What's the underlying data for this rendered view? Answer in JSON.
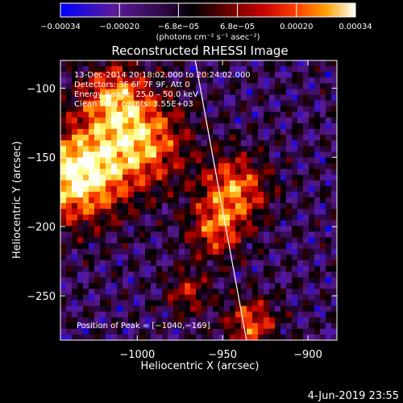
{
  "chart_data": {
    "type": "heatmap",
    "title": "Reconstructed RHESSI Image",
    "xlabel": "Heliocentric X (arcsec)",
    "ylabel": "Heliocentric Y (arcsec)",
    "xlim": [
      -1045,
      -883
    ],
    "ylim": [
      -282,
      -80
    ],
    "x_ticks": [
      -1000,
      -950,
      -900
    ],
    "x_tick_labels": [
      "−1000",
      "−950",
      "−900"
    ],
    "y_ticks": [
      -100,
      -150,
      -200,
      -250
    ],
    "y_tick_labels": [
      "−100",
      "−150",
      "−200",
      "−250"
    ],
    "colormap": [
      "#0000ff",
      "#5a1a9a",
      "#3a0a55",
      "#000000",
      "#5a0000",
      "#c00000",
      "#ff4000",
      "#ffa000",
      "#ffff80",
      "#ffffff"
    ],
    "colorbar": {
      "range": [
        -0.00034,
        0.00034
      ],
      "tick_labels": [
        "−0.00034",
        "−0.00020",
        "−6.8e−05",
        "6.8e−05",
        "0.00020",
        "0.00034"
      ],
      "unit": "(photons cm⁻² s⁻¹ asec⁻²)"
    },
    "annotations": [
      "13-Dec-2014 20:18:02.000 to 20:24:02.000",
      "Detectors: 3F 6F 7F 9F, Att 0",
      "Energy Range: 25.0 – 50.0 keV",
      "Clean     Total counts: 3.55E+03"
    ],
    "peak_label": "Position of Peak = [−1040,−169]",
    "peak_position": [
      -1040,
      -169
    ],
    "limb_line": [
      [
        -966,
        -80
      ],
      [
        -936,
        -282
      ]
    ]
  },
  "footer": {
    "date": "4-Jun-2019 23:55"
  }
}
